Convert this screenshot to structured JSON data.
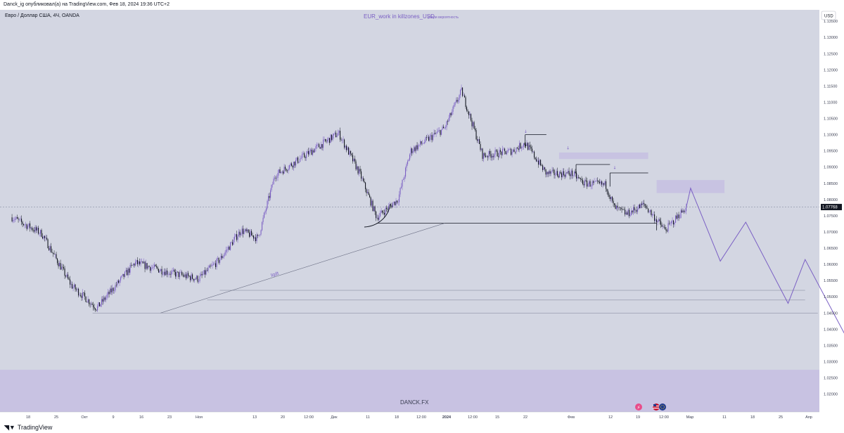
{
  "header": {
    "publish_line": "Danck_ig опубликовал(а) на TradingView.com, Фев 18, 2024 19:36 UTC+2"
  },
  "symbol_line": "Евро / Доллар США, 4Ч, OANDA",
  "indicator": {
    "name": "EUR_work in killzones_USD",
    "note": "убери вероятность"
  },
  "currency_button": "USD",
  "current_price_label": "1.07768",
  "annotation_text": "lqdt",
  "watermark": "DANCK.FX",
  "logo_text": "TradingView",
  "colors": {
    "background": "#d3d6e2",
    "candle_up": "#7b60c4",
    "candle_down": "#131722",
    "projection": "#7b60c4",
    "zone": "#c6c0e2"
  },
  "icons": [
    "tradingview-logo-icon",
    "lightning-event-icon",
    "us-flag-icon",
    "eu-flag-icon"
  ],
  "chart_data": {
    "type": "candlestick",
    "y_ticks": [
      "1.13500",
      "1.13000",
      "1.12500",
      "1.12000",
      "1.11500",
      "1.11000",
      "1.10500",
      "1.10000",
      "1.09500",
      "1.09000",
      "1.08500",
      "1.08000",
      "1.07500",
      "1.07000",
      "1.06500",
      "1.06000",
      "1.05500",
      "1.05000",
      "1.04500",
      "1.04000",
      "1.03500",
      "1.03000",
      "1.02500",
      "1.02000"
    ],
    "x_ticks": [
      "18",
      "25",
      "Окт",
      "9",
      "16",
      "23",
      "Ноя",
      "13",
      "20",
      "12:00",
      "Дек",
      "11",
      "18",
      "12:00",
      "2024",
      "12:00",
      "15",
      "22",
      "Фев",
      "12",
      "19",
      "12:00",
      "Мар",
      "11",
      "18",
      "25",
      "Апр"
    ],
    "ylim": [
      1.0145,
      1.1385
    ],
    "current_price": 1.07768,
    "trend": [
      [
        "2023-09-13",
        1.0745
      ],
      [
        "2023-09-20",
        1.0695
      ],
      [
        "2023-09-27",
        1.0535
      ],
      [
        "2023-10-03",
        1.0465
      ],
      [
        "2023-10-12",
        1.0605
      ],
      [
        "2023-10-20",
        1.0575
      ],
      [
        "2023-10-27",
        1.0555
      ],
      [
        "2023-11-01",
        1.0615
      ],
      [
        "2023-11-06",
        1.0705
      ],
      [
        "2023-11-10",
        1.068
      ],
      [
        "2023-11-14",
        1.0875
      ],
      [
        "2023-11-21",
        1.0935
      ],
      [
        "2023-11-29",
        1.1005
      ],
      [
        "2023-12-04",
        1.088
      ],
      [
        "2023-12-08",
        1.0745
      ],
      [
        "2023-12-13",
        1.08
      ],
      [
        "2023-12-16",
        1.095
      ],
      [
        "2023-12-24",
        1.102
      ],
      [
        "2023-12-28",
        1.1135
      ],
      [
        "2024-01-02",
        1.0935
      ],
      [
        "2024-01-09",
        1.095
      ],
      [
        "2024-01-12",
        1.0975
      ],
      [
        "2024-01-17",
        1.088
      ],
      [
        "2024-01-23",
        1.088
      ],
      [
        "2024-01-26",
        1.085
      ],
      [
        "2024-01-31",
        1.0845
      ],
      [
        "2024-02-02",
        1.0775
      ],
      [
        "2024-02-05",
        1.0755
      ],
      [
        "2024-02-09",
        1.0785
      ],
      [
        "2024-02-14",
        1.0705
      ],
      [
        "2024-02-19",
        1.0777
      ]
    ],
    "projection": [
      [
        "2024-02-19",
        1.0777
      ],
      [
        "2024-02-20",
        1.0835
      ],
      [
        "2024-02-27",
        1.061
      ],
      [
        "2024-03-04",
        1.073
      ],
      [
        "2024-03-14",
        1.048
      ],
      [
        "2024-03-18",
        1.0615
      ],
      [
        "2024-04-01",
        1.027
      ]
    ],
    "horizontal_levels": [
      {
        "from": "2023-12-08",
        "to": "2024-02-12",
        "price": 1.0727
      },
      {
        "from": "2024-01-12",
        "to": "2024-01-17",
        "price": 1.1
      },
      {
        "from": "2024-01-24",
        "to": "2024-02-01",
        "price": 1.0908
      },
      {
        "from": "2024-02-01",
        "to": "2024-02-10",
        "price": 1.0882
      },
      {
        "from": "2023-11-01",
        "to": "2024-03-18",
        "price": 1.052
      },
      {
        "from": "2023-10-29",
        "to": "2024-03-18",
        "price": 1.049
      },
      {
        "from": "2023-10-02",
        "to": "2024-03-21",
        "price": 1.045
      }
    ],
    "trendline": {
      "from": [
        "2023-10-18",
        1.045
      ],
      "to": [
        "2023-12-24",
        1.0727
      ]
    },
    "zones": [
      {
        "from": "2024-01-20",
        "to": "2024-02-10",
        "low": 1.0925,
        "high": 1.0945
      },
      {
        "from": "2024-02-12",
        "to": "2024-02-28",
        "low": 1.082,
        "high": 1.086
      },
      {
        "from": "2023-09-11",
        "to": "2024-05-01",
        "low": 1.0145,
        "high": 1.0275
      }
    ]
  }
}
